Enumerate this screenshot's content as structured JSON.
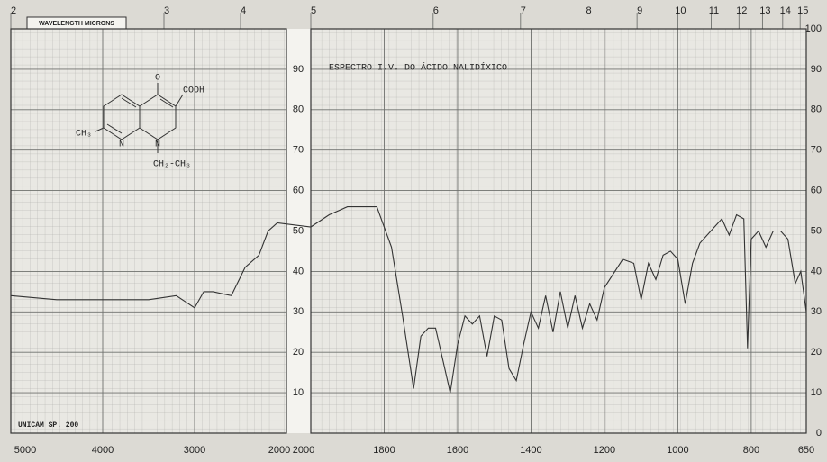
{
  "chart_data": {
    "type": "line",
    "title": "ESPECTRO I.V. DO ÁCIDO NALIDÍXICO",
    "x2_label": "WAVELENGTH MICRONS",
    "instrument": "UNICAM SP. 200",
    "structure_labels": [
      "O",
      "COOH",
      "CH₃",
      "N",
      "N",
      "CH₂-CH₃"
    ],
    "x_segments": [
      {
        "xlim": [
          5000,
          2000
        ],
        "xticks": [
          5000,
          4000,
          3000,
          2000
        ]
      },
      {
        "xlim": [
          2000,
          650
        ],
        "xticks": [
          2000,
          1800,
          1600,
          1400,
          1200,
          1000,
          800,
          650
        ]
      }
    ],
    "x2ticks": [
      2,
      3,
      4,
      5,
      6,
      7,
      8,
      9,
      10,
      11,
      12,
      13,
      14,
      15
    ],
    "ylim": [
      0,
      100
    ],
    "yticks": [
      0,
      10,
      20,
      30,
      40,
      50,
      60,
      70,
      80,
      90,
      100
    ],
    "grid": true,
    "color": "#333333",
    "x": [
      5000,
      4500,
      4000,
      3500,
      3200,
      3000,
      2900,
      2800,
      2600,
      2450,
      2300,
      2200,
      2100,
      2000,
      1950,
      1900,
      1850,
      1820,
      1780,
      1750,
      1720,
      1700,
      1680,
      1660,
      1640,
      1620,
      1600,
      1580,
      1560,
      1540,
      1520,
      1500,
      1480,
      1460,
      1440,
      1420,
      1400,
      1380,
      1360,
      1340,
      1320,
      1300,
      1280,
      1260,
      1240,
      1220,
      1200,
      1150,
      1120,
      1100,
      1080,
      1060,
      1040,
      1020,
      1000,
      980,
      960,
      940,
      900,
      880,
      860,
      840,
      820,
      810,
      800,
      780,
      760,
      740,
      720,
      700,
      680,
      665,
      650
    ],
    "values": [
      34,
      33,
      33,
      33,
      34,
      31,
      35,
      35,
      34,
      41,
      44,
      50,
      52,
      51,
      54,
      56,
      56,
      56,
      46,
      29,
      11,
      24,
      26,
      26,
      18,
      10,
      22,
      29,
      27,
      29,
      19,
      29,
      28,
      16,
      13,
      22,
      30,
      26,
      34,
      25,
      35,
      26,
      34,
      26,
      32,
      28,
      36,
      43,
      42,
      33,
      42,
      38,
      44,
      45,
      43,
      32,
      42,
      47,
      51,
      53,
      49,
      54,
      53,
      21,
      48,
      50,
      46,
      50,
      50,
      48,
      37,
      40,
      30
    ]
  }
}
